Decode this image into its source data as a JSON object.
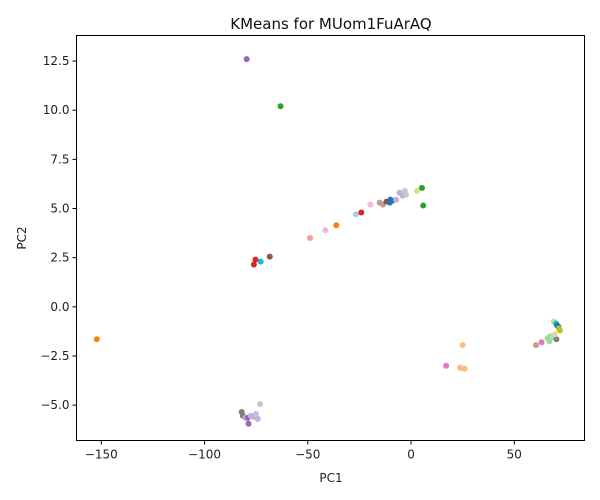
{
  "chart_data": {
    "type": "scatter",
    "title": "KMeans for MUom1FuArAQ",
    "xlabel": "PC1",
    "ylabel": "PC2",
    "xlim": [
      -162,
      84
    ],
    "ylim": [
      -6.8,
      13.8
    ],
    "xticks": [
      -150,
      -100,
      -50,
      0,
      50
    ],
    "yticks": [
      -5.0,
      -2.5,
      0.0,
      2.5,
      5.0,
      7.5,
      10.0,
      12.5
    ],
    "xtick_labels": [
      "−150",
      "−100",
      "−50",
      "0",
      "50"
    ],
    "ytick_labels": [
      "−5.0",
      "−2.5",
      "0.0",
      "2.5",
      "5.0",
      "7.5",
      "10.0",
      "12.5"
    ],
    "grid": false,
    "legend": "none",
    "points": [
      {
        "x": -79.6,
        "y": 12.6,
        "color": "#9467bd"
      },
      {
        "x": -63.2,
        "y": 10.2,
        "color": "#2ca02c"
      },
      {
        "x": -152.2,
        "y": -1.65,
        "color": "#ff7f0e"
      },
      {
        "x": -75.3,
        "y": 2.4,
        "color": "#d62728"
      },
      {
        "x": -76.1,
        "y": 2.15,
        "color": "#d62728"
      },
      {
        "x": -72.8,
        "y": 2.3,
        "color": "#17becf"
      },
      {
        "x": -68.4,
        "y": 2.55,
        "color": "#8c564b"
      },
      {
        "x": -48.9,
        "y": 3.5,
        "color": "#ff9896"
      },
      {
        "x": -41.5,
        "y": 3.9,
        "color": "#f7b6d2"
      },
      {
        "x": -36.2,
        "y": 4.15,
        "color": "#ff7f0e"
      },
      {
        "x": -26.7,
        "y": 4.7,
        "color": "#aec7e8"
      },
      {
        "x": -24.1,
        "y": 4.8,
        "color": "#d62728"
      },
      {
        "x": -19.7,
        "y": 5.2,
        "color": "#f7b6d2"
      },
      {
        "x": -15.2,
        "y": 5.3,
        "color": "#c49c94"
      },
      {
        "x": -13.6,
        "y": 5.2,
        "color": "#c49c94"
      },
      {
        "x": -11.9,
        "y": 5.35,
        "color": "#8c564b"
      },
      {
        "x": -10.3,
        "y": 5.3,
        "color": "#1f77b4"
      },
      {
        "x": -10.0,
        "y": 5.45,
        "color": "#1f77b4"
      },
      {
        "x": -9.1,
        "y": 5.4,
        "color": "#1f77b4"
      },
      {
        "x": -7.2,
        "y": 5.45,
        "color": "#c5b0d5"
      },
      {
        "x": -5.6,
        "y": 5.8,
        "color": "#c5b0d5"
      },
      {
        "x": -4.1,
        "y": 5.65,
        "color": "#c5b0d5"
      },
      {
        "x": -3.0,
        "y": 5.9,
        "color": "#c7c7c7"
      },
      {
        "x": -2.5,
        "y": 5.7,
        "color": "#c7c7c7"
      },
      {
        "x": 2.9,
        "y": 5.9,
        "color": "#dbdb8d"
      },
      {
        "x": 5.3,
        "y": 6.05,
        "color": "#2ca02c"
      },
      {
        "x": 5.9,
        "y": 5.15,
        "color": "#2ca02c"
      },
      {
        "x": 25.0,
        "y": -1.95,
        "color": "#ffbb78"
      },
      {
        "x": 17.0,
        "y": -3.0,
        "color": "#e377c2"
      },
      {
        "x": 23.8,
        "y": -3.1,
        "color": "#ffbb78"
      },
      {
        "x": 25.9,
        "y": -3.15,
        "color": "#ffbb78"
      },
      {
        "x": 60.5,
        "y": -1.95,
        "color": "#c49c94"
      },
      {
        "x": 63.2,
        "y": -1.8,
        "color": "#e377c2"
      },
      {
        "x": 66.1,
        "y": -1.6,
        "color": "#98df8a"
      },
      {
        "x": 67.0,
        "y": -1.75,
        "color": "#98df8a"
      },
      {
        "x": 67.6,
        "y": -1.5,
        "color": "#98df8a"
      },
      {
        "x": 68.5,
        "y": -1.55,
        "color": "#9edae5"
      },
      {
        "x": 69.1,
        "y": -0.75,
        "color": "#dbdb8d"
      },
      {
        "x": 70.2,
        "y": -0.85,
        "color": "#17becf"
      },
      {
        "x": 70.8,
        "y": -0.95,
        "color": "#1f77b4"
      },
      {
        "x": 71.3,
        "y": -1.0,
        "color": "#1f77b4"
      },
      {
        "x": 71.6,
        "y": -1.1,
        "color": "#bcbd22"
      },
      {
        "x": 72.1,
        "y": -1.2,
        "color": "#bcbd22"
      },
      {
        "x": 70.4,
        "y": -1.65,
        "color": "#7f7f7f"
      },
      {
        "x": 69.6,
        "y": -1.4,
        "color": "#dbdb8d"
      },
      {
        "x": -73.1,
        "y": -4.95,
        "color": "#c7c7c7"
      },
      {
        "x": -82.0,
        "y": -5.35,
        "color": "#7f7f7f"
      },
      {
        "x": -81.4,
        "y": -5.55,
        "color": "#7f7f7f"
      },
      {
        "x": -80.2,
        "y": -5.65,
        "color": "#c5b0d5"
      },
      {
        "x": -79.1,
        "y": -5.65,
        "color": "#9467bd"
      },
      {
        "x": -78.7,
        "y": -5.95,
        "color": "#9467bd"
      },
      {
        "x": -77.6,
        "y": -5.55,
        "color": "#c5b0d5"
      },
      {
        "x": -76.2,
        "y": -5.6,
        "color": "#c5b0d5"
      },
      {
        "x": -75.1,
        "y": -5.45,
        "color": "#aec7e8"
      },
      {
        "x": -74.2,
        "y": -5.7,
        "color": "#c5b0d5"
      }
    ]
  }
}
